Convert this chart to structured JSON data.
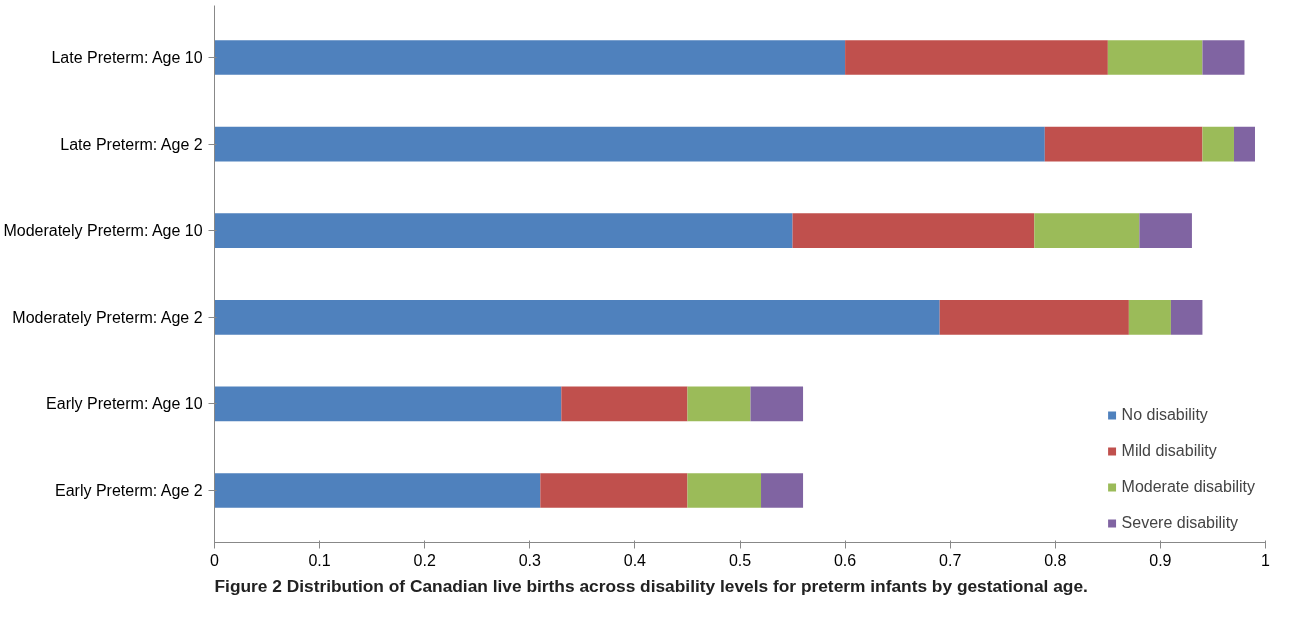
{
  "chart_data": {
    "type": "bar",
    "orientation": "horizontal",
    "stacked": true,
    "title": "Figure 2 Distribution of Canadian live births across disability levels for preterm infants by gestational age.",
    "categories": [
      "Late Preterm: Age 10",
      "Late Preterm: Age 2",
      "Moderately Preterm: Age 10",
      "Moderately Preterm: Age 2",
      "Early Preterm: Age 10",
      "Early Preterm: Age 2"
    ],
    "series": [
      {
        "name": "No disability",
        "color": "#4f81bd",
        "values": [
          0.6,
          0.79,
          0.55,
          0.69,
          0.33,
          0.31
        ]
      },
      {
        "name": "Mild disability",
        "color": "#c0504d",
        "values": [
          0.25,
          0.15,
          0.23,
          0.18,
          0.12,
          0.14
        ]
      },
      {
        "name": "Moderate disability",
        "color": "#9bbb59",
        "values": [
          0.09,
          0.03,
          0.1,
          0.04,
          0.06,
          0.07
        ]
      },
      {
        "name": "Severe disability",
        "color": "#8064a2",
        "values": [
          0.04,
          0.02,
          0.05,
          0.03,
          0.05,
          0.04
        ]
      }
    ],
    "xlim": [
      0,
      1
    ],
    "xticks": [
      0,
      0.1,
      0.2,
      0.3,
      0.4,
      0.5,
      0.6,
      0.7,
      0.8,
      0.9,
      1
    ],
    "legend": "bottom right",
    "grid": false
  }
}
